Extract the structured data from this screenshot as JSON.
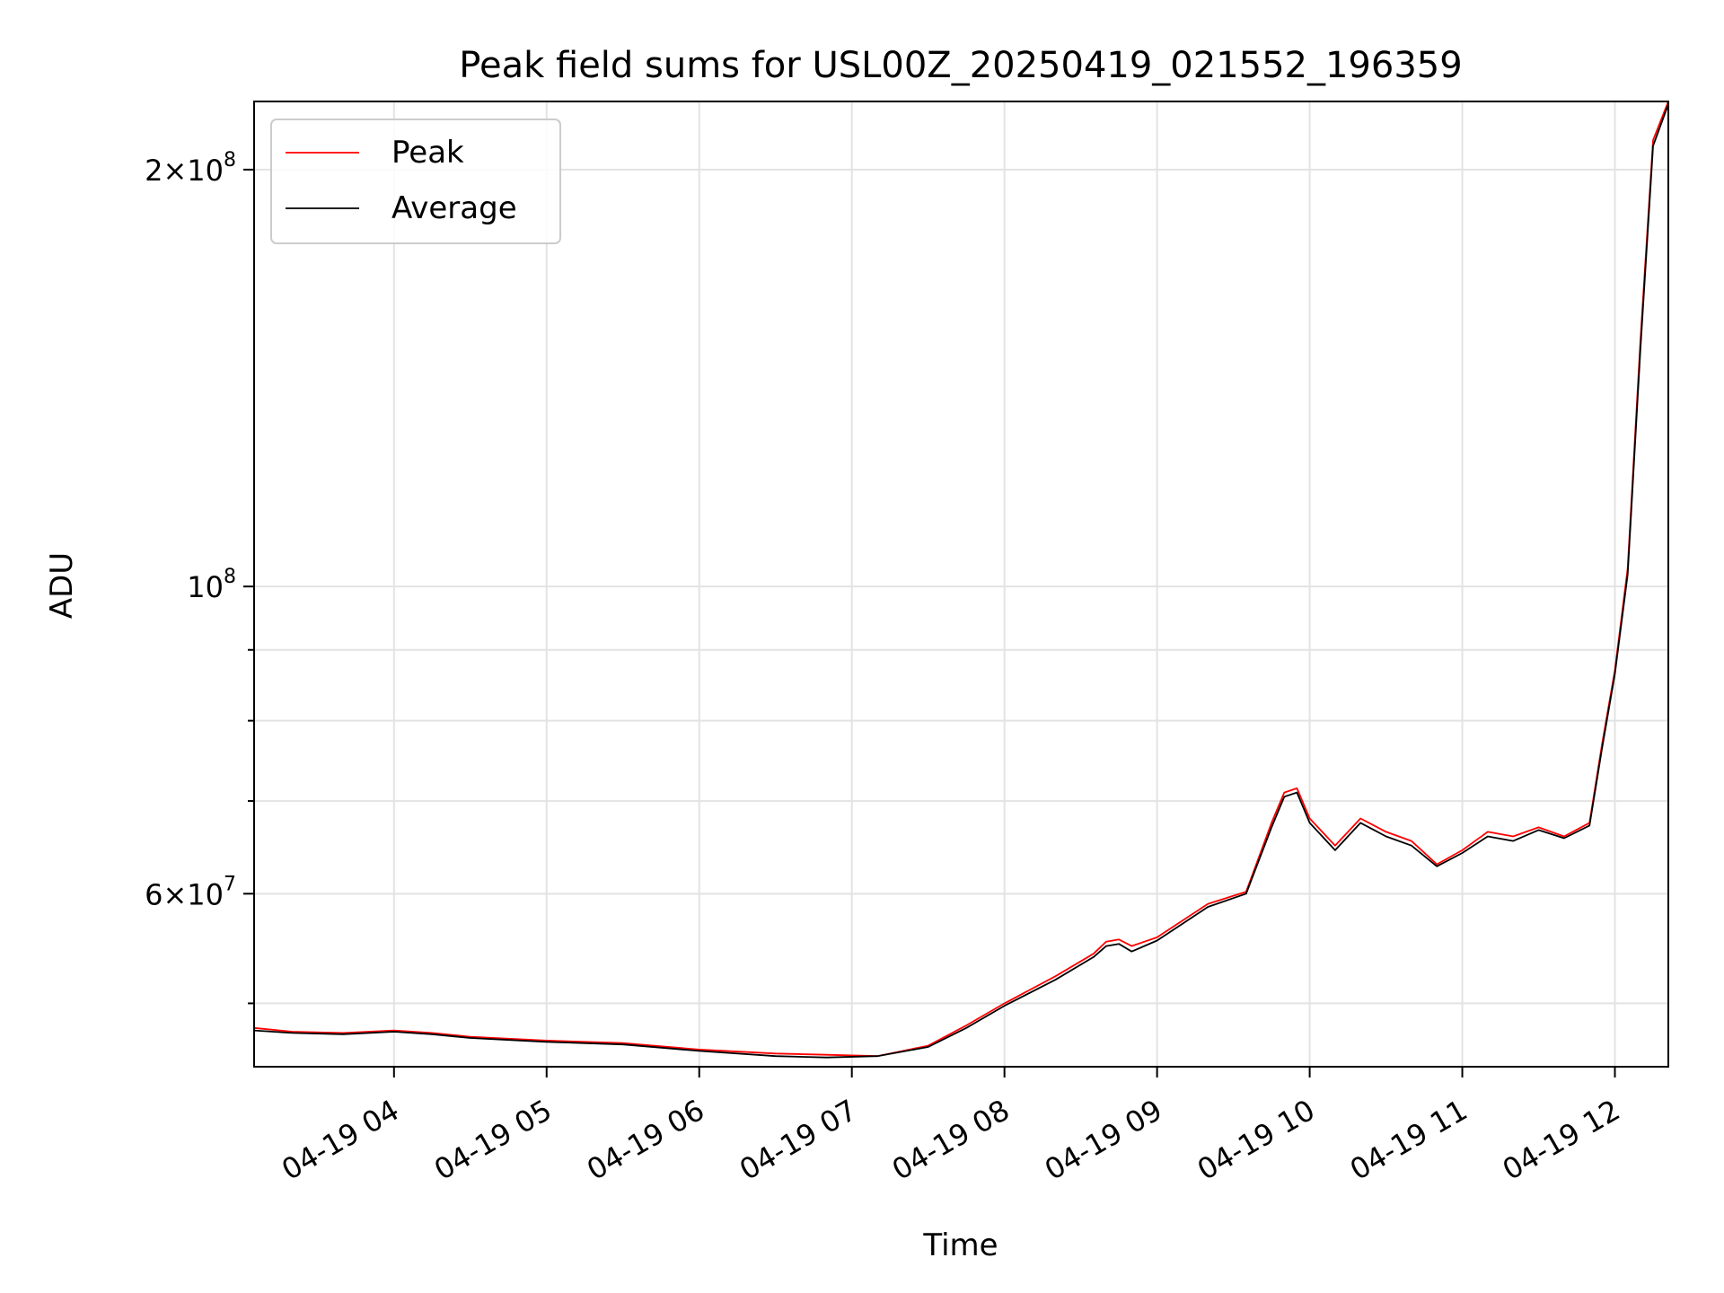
{
  "chart_data": {
    "type": "line",
    "title": "Peak field sums for USL00Z_20250419_021552_196359",
    "xlabel": "Time",
    "ylabel": "ADU",
    "x_type": "datetime",
    "y_scale": "log",
    "xlim": [
      "2025-04-19 03:05",
      "2025-04-19 12:21"
    ],
    "ylim": [
      45000000,
      224000000
    ],
    "grid": true,
    "legend": "top-left",
    "x_ticks": [
      {
        "t": "2025-04-19 04:00",
        "label": "04-19 04"
      },
      {
        "t": "2025-04-19 05:00",
        "label": "04-19 05"
      },
      {
        "t": "2025-04-19 06:00",
        "label": "04-19 06"
      },
      {
        "t": "2025-04-19 07:00",
        "label": "04-19 07"
      },
      {
        "t": "2025-04-19 08:00",
        "label": "04-19 08"
      },
      {
        "t": "2025-04-19 09:00",
        "label": "04-19 09"
      },
      {
        "t": "2025-04-19 10:00",
        "label": "04-19 10"
      },
      {
        "t": "2025-04-19 11:00",
        "label": "04-19 11"
      },
      {
        "t": "2025-04-19 12:00",
        "label": "04-19 12"
      }
    ],
    "y_ticks_major": [
      {
        "v": 60000000,
        "base": "6",
        "exp": "7"
      },
      {
        "v": 100000000,
        "base": "",
        "exp": "8"
      },
      {
        "v": 200000000,
        "base": "2",
        "exp": "8"
      }
    ],
    "y_ticks_minor": [
      50000000,
      70000000,
      80000000,
      90000000
    ],
    "series": [
      {
        "name": "Peak",
        "color": "#ff0000",
        "points": [
          [
            "2025-04-19 03:05",
            48000000
          ],
          [
            "2025-04-19 03:20",
            47700000
          ],
          [
            "2025-04-19 03:40",
            47600000
          ],
          [
            "2025-04-19 04:00",
            47800000
          ],
          [
            "2025-04-19 04:15",
            47600000
          ],
          [
            "2025-04-19 04:30",
            47300000
          ],
          [
            "2025-04-19 05:00",
            47000000
          ],
          [
            "2025-04-19 05:30",
            46800000
          ],
          [
            "2025-04-19 06:00",
            46300000
          ],
          [
            "2025-04-19 06:30",
            46000000
          ],
          [
            "2025-04-19 06:50",
            45900000
          ],
          [
            "2025-04-19 07:10",
            45800000
          ],
          [
            "2025-04-19 07:30",
            46600000
          ],
          [
            "2025-04-19 07:45",
            48200000
          ],
          [
            "2025-04-19 08:00",
            50000000
          ],
          [
            "2025-04-19 08:20",
            52300000
          ],
          [
            "2025-04-19 08:35",
            54300000
          ],
          [
            "2025-04-19 08:40",
            55400000
          ],
          [
            "2025-04-19 08:45",
            55600000
          ],
          [
            "2025-04-19 08:50",
            55000000
          ],
          [
            "2025-04-19 09:00",
            55800000
          ],
          [
            "2025-04-19 09:20",
            59000000
          ],
          [
            "2025-04-19 09:35",
            60200000
          ],
          [
            "2025-04-19 09:45",
            67500000
          ],
          [
            "2025-04-19 09:50",
            71000000
          ],
          [
            "2025-04-19 09:55",
            71500000
          ],
          [
            "2025-04-19 10:00",
            68000000
          ],
          [
            "2025-04-19 10:10",
            65000000
          ],
          [
            "2025-04-19 10:20",
            68000000
          ],
          [
            "2025-04-19 10:30",
            66500000
          ],
          [
            "2025-04-19 10:40",
            65500000
          ],
          [
            "2025-04-19 10:50",
            63000000
          ],
          [
            "2025-04-19 11:00",
            64500000
          ],
          [
            "2025-04-19 11:10",
            66500000
          ],
          [
            "2025-04-19 11:20",
            66000000
          ],
          [
            "2025-04-19 11:30",
            67000000
          ],
          [
            "2025-04-19 11:40",
            66000000
          ],
          [
            "2025-04-19 11:50",
            67500000
          ],
          [
            "2025-04-19 11:55",
            77000000
          ],
          [
            "2025-04-19 12:00",
            87000000
          ],
          [
            "2025-04-19 12:05",
            103000000
          ],
          [
            "2025-04-19 12:10",
            150000000
          ],
          [
            "2025-04-19 12:15",
            210000000
          ],
          [
            "2025-04-19 12:21",
            224000000
          ]
        ]
      },
      {
        "name": "Average",
        "color": "#000000",
        "points": [
          [
            "2025-04-19 03:05",
            47800000
          ],
          [
            "2025-04-19 03:20",
            47600000
          ],
          [
            "2025-04-19 03:40",
            47500000
          ],
          [
            "2025-04-19 04:00",
            47700000
          ],
          [
            "2025-04-19 04:15",
            47500000
          ],
          [
            "2025-04-19 04:30",
            47200000
          ],
          [
            "2025-04-19 05:00",
            46900000
          ],
          [
            "2025-04-19 05:30",
            46700000
          ],
          [
            "2025-04-19 06:00",
            46200000
          ],
          [
            "2025-04-19 06:30",
            45800000
          ],
          [
            "2025-04-19 06:50",
            45700000
          ],
          [
            "2025-04-19 07:10",
            45800000
          ],
          [
            "2025-04-19 07:30",
            46500000
          ],
          [
            "2025-04-19 07:45",
            48000000
          ],
          [
            "2025-04-19 08:00",
            49800000
          ],
          [
            "2025-04-19 08:20",
            52000000
          ],
          [
            "2025-04-19 08:35",
            54000000
          ],
          [
            "2025-04-19 08:40",
            55000000
          ],
          [
            "2025-04-19 08:45",
            55200000
          ],
          [
            "2025-04-19 08:50",
            54500000
          ],
          [
            "2025-04-19 09:00",
            55500000
          ],
          [
            "2025-04-19 09:20",
            58700000
          ],
          [
            "2025-04-19 09:35",
            60000000
          ],
          [
            "2025-04-19 09:45",
            67000000
          ],
          [
            "2025-04-19 09:50",
            70500000
          ],
          [
            "2025-04-19 09:55",
            71000000
          ],
          [
            "2025-04-19 10:00",
            67500000
          ],
          [
            "2025-04-19 10:10",
            64500000
          ],
          [
            "2025-04-19 10:20",
            67500000
          ],
          [
            "2025-04-19 10:30",
            66000000
          ],
          [
            "2025-04-19 10:40",
            65000000
          ],
          [
            "2025-04-19 10:50",
            62800000
          ],
          [
            "2025-04-19 11:00",
            64200000
          ],
          [
            "2025-04-19 11:10",
            66000000
          ],
          [
            "2025-04-19 11:20",
            65500000
          ],
          [
            "2025-04-19 11:30",
            66700000
          ],
          [
            "2025-04-19 11:40",
            65800000
          ],
          [
            "2025-04-19 11:50",
            67200000
          ],
          [
            "2025-04-19 11:55",
            76500000
          ],
          [
            "2025-04-19 12:00",
            86500000
          ],
          [
            "2025-04-19 12:05",
            102000000
          ],
          [
            "2025-04-19 12:10",
            148000000
          ],
          [
            "2025-04-19 12:15",
            208000000
          ],
          [
            "2025-04-19 12:21",
            223000000
          ]
        ]
      }
    ]
  }
}
